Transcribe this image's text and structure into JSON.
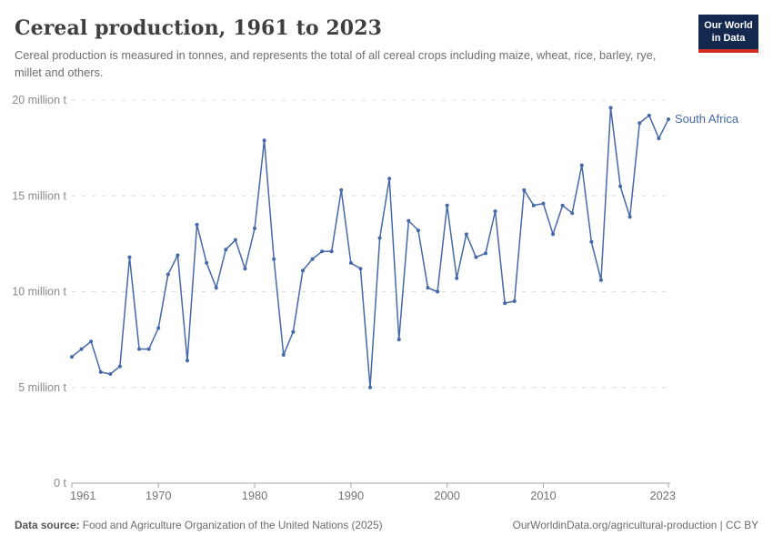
{
  "header": {
    "title": "Cereal production, 1961 to 2023",
    "subtitle": "Cereal production is measured in tonnes, and represents the total of all cereal crops including maize, wheat, rice, barley, rye, millet and others.",
    "logo": {
      "line1": "Our World",
      "line2": "in Data"
    }
  },
  "chart_data": {
    "type": "line",
    "title": "Cereal production, 1961 to 2023",
    "unit": "million tonnes",
    "entity": "South Africa",
    "x": [
      1961,
      1962,
      1963,
      1964,
      1965,
      1966,
      1967,
      1968,
      1969,
      1970,
      1971,
      1972,
      1973,
      1974,
      1975,
      1976,
      1977,
      1978,
      1979,
      1980,
      1981,
      1982,
      1983,
      1984,
      1985,
      1986,
      1987,
      1988,
      1989,
      1990,
      1991,
      1992,
      1993,
      1994,
      1995,
      1996,
      1997,
      1998,
      1999,
      2000,
      2001,
      2002,
      2003,
      2004,
      2005,
      2006,
      2007,
      2008,
      2009,
      2010,
      2011,
      2012,
      2013,
      2014,
      2015,
      2016,
      2017,
      2018,
      2019,
      2020,
      2021,
      2022,
      2023
    ],
    "series": [
      {
        "name": "South Africa",
        "color": "#4568a8",
        "values": [
          6.6,
          7.0,
          7.4,
          5.8,
          5.7,
          6.1,
          11.8,
          7.0,
          7.0,
          8.1,
          10.9,
          11.9,
          6.4,
          13.5,
          11.5,
          10.2,
          12.2,
          12.7,
          11.2,
          13.3,
          17.9,
          11.7,
          6.7,
          7.9,
          11.1,
          11.7,
          12.1,
          12.1,
          15.3,
          11.5,
          11.2,
          5.0,
          12.8,
          15.9,
          7.5,
          13.7,
          13.2,
          10.2,
          10.0,
          14.5,
          10.7,
          13.0,
          11.8,
          12.0,
          14.2,
          9.4,
          9.5,
          15.3,
          14.5,
          14.6,
          13.0,
          14.5,
          14.1,
          16.6,
          12.6,
          10.6,
          19.6,
          15.5,
          13.9,
          18.8,
          19.2,
          18.0,
          19.0
        ]
      }
    ],
    "x_ticks": [
      1961,
      1970,
      1980,
      1990,
      2000,
      2010,
      2023
    ],
    "y_ticks": [
      {
        "value": 0,
        "label": "0 t"
      },
      {
        "value": 5,
        "label": "5 million t"
      },
      {
        "value": 10,
        "label": "10 million t"
      },
      {
        "value": 15,
        "label": "15 million t"
      },
      {
        "value": 20,
        "label": "20 million t"
      }
    ],
    "ylim": [
      0,
      20
    ],
    "xlim": [
      1961,
      2023
    ],
    "grid": "horizontal-dashed",
    "legend_position": "end-of-line-label",
    "end_label": "South Africa"
  },
  "colors": {
    "line": "#4568a8",
    "grid": "#dcdcdc",
    "axis": "#a5a5a5",
    "y_label": "#8a8a8a",
    "x_label": "#737373",
    "logo_bg": "#13294e",
    "logo_accent": "#cf2e27"
  },
  "footer": {
    "source_label": "Data source:",
    "source_text": " Food and Agriculture Organization of the United Nations (2025)",
    "link_text": "OurWorldinData.org/agricultural-production | CC BY"
  }
}
